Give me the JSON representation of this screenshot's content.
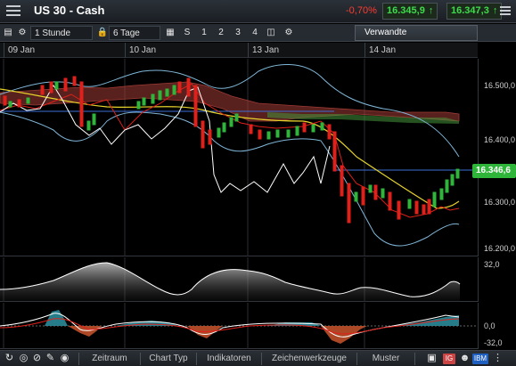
{
  "header": {
    "title": "US 30 - Cash",
    "change": "-0,70%",
    "bid": "16.345,9",
    "ask": "16.347,3"
  },
  "toolbar": {
    "interval": "1 Stunde",
    "range": "6 Tage",
    "mode_s": "S",
    "layouts": [
      "1",
      "2",
      "3",
      "4"
    ],
    "related": "Verwandte"
  },
  "dates": [
    "09 Jan",
    "10 Jan",
    "13 Jan",
    "14 Jan"
  ],
  "price_axis": {
    "labels": [
      "16.500,0",
      "16.400,0",
      "16.300,0",
      "16.200,0"
    ],
    "current": "16.346,6"
  },
  "rsi_axis": {
    "labels": [
      "32,0"
    ]
  },
  "macd_axis": {
    "labels": [
      "0,0",
      "-32,0"
    ]
  },
  "bottom": {
    "tabs": [
      "Zeitraum",
      "Chart Typ",
      "Indikatoren",
      "Zeichenwerkzeuge",
      "Muster"
    ],
    "badge_ig": "IG",
    "badge_ibm": "IBM"
  },
  "colors": {
    "up": "#2fb53a",
    "down": "#e0201a",
    "bollinger": "#7fb6d8",
    "ma_yellow": "#e6d22a",
    "current_price": "#2fb53a"
  },
  "icons": {
    "menu": "menu-icon",
    "table": "table-icon",
    "settings": "gear-icon",
    "lock": "lock-icon",
    "calendar": "calendar-icon",
    "refresh": "refresh-icon",
    "crosshair": "crosshair-icon",
    "pencil": "pencil-icon",
    "eye": "eye-icon"
  }
}
